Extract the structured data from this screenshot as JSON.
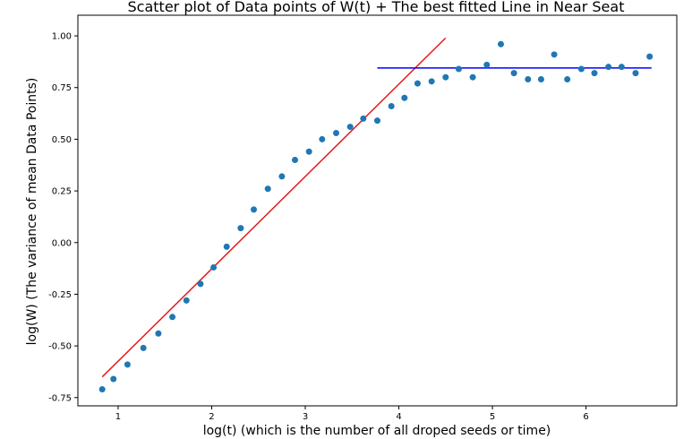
{
  "chart_data": {
    "type": "scatter",
    "title": "Scatter plot of Data points of W(t) + The best fitted Line in Near Seat",
    "xlabel": "log(t) (which is the number of all droped seeds or time)",
    "ylabel": "log(W) (The variance of mean Data Points)",
    "xlim": [
      0.57,
      6.97
    ],
    "ylim": [
      -0.79,
      1.1
    ],
    "xticks": [
      1,
      2,
      3,
      4,
      5,
      6
    ],
    "yticks": [
      -0.75,
      -0.5,
      -0.25,
      0.0,
      0.25,
      0.5,
      0.75,
      1.0
    ],
    "ytick_labels": [
      "-0.75",
      "-0.50",
      "-0.25",
      "0.00",
      "0.25",
      "0.50",
      "0.75",
      "1.00"
    ],
    "grid": false,
    "colors": {
      "points": "#1f77b4",
      "fit_line": "#e41a1c",
      "plateau_line": "#0000ff"
    },
    "points": {
      "x": [
        0.83,
        0.95,
        1.1,
        1.27,
        1.43,
        1.58,
        1.73,
        1.88,
        2.02,
        2.16,
        2.31,
        2.45,
        2.6,
        2.75,
        2.89,
        3.04,
        3.18,
        3.33,
        3.48,
        3.62,
        3.77,
        3.92,
        4.06,
        4.2,
        4.35,
        4.5,
        4.64,
        4.79,
        4.94,
        5.09,
        5.23,
        5.38,
        5.52,
        5.66,
        5.8,
        5.95,
        6.09,
        6.24,
        6.38,
        6.53,
        6.68
      ],
      "y": [
        -0.71,
        -0.66,
        -0.59,
        -0.51,
        -0.44,
        -0.36,
        -0.28,
        -0.2,
        -0.12,
        -0.02,
        0.07,
        0.16,
        0.26,
        0.32,
        0.4,
        0.44,
        0.5,
        0.53,
        0.56,
        0.6,
        0.59,
        0.66,
        0.7,
        0.77,
        0.78,
        0.8,
        0.84,
        0.8,
        0.86,
        0.96,
        0.82,
        0.79,
        0.79,
        0.91,
        0.79,
        0.84,
        0.82,
        0.85,
        0.85,
        0.82,
        0.9
      ]
    },
    "lines": [
      {
        "x": [
          0.83,
          4.5
        ],
        "y": [
          -0.65,
          0.99
        ],
        "color": "#e41a1c"
      },
      {
        "x": [
          3.77,
          6.7
        ],
        "y": [
          0.845,
          0.845
        ],
        "color": "#0000ff"
      }
    ]
  }
}
